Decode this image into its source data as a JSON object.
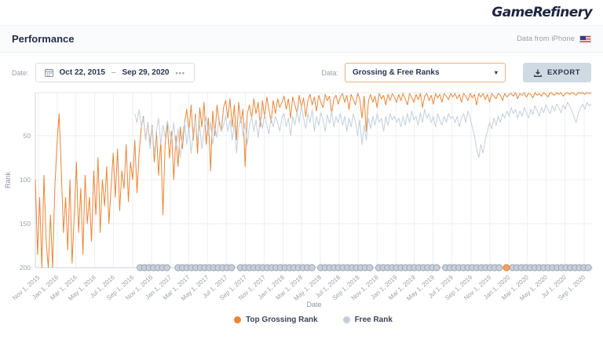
{
  "topbar": {
    "logo": "GameRefinery"
  },
  "header": {
    "title": "Performance",
    "data_source": "Data from iPhone",
    "flag_icon": "us-flag-icon"
  },
  "toolbar": {
    "date_label": "Date:",
    "date_range": {
      "start": "Oct 22, 2015",
      "separator": "–",
      "end": "Sep 29, 2020",
      "more": "•••"
    },
    "data_label": "Data:",
    "data_select_value": "Grossing & Free Ranks",
    "export_label": "EXPORT"
  },
  "legend": [
    {
      "label": "Top Grossing Rank",
      "color": "#ef8432"
    },
    {
      "label": "Free Rank",
      "color": "#c3cfdd"
    }
  ],
  "colors": {
    "accent_orange": "#ef8432",
    "accent_bluegray": "#c3cfdd",
    "navy_text": "#252e48",
    "muted_text": "#9aa0ae",
    "grid": "#edeff2",
    "axis": "#cfd4db",
    "marker_fill": "#c9d0da",
    "marker_stroke": "#9aa4b4",
    "marker_highlight_fill": "#f2a25c",
    "marker_highlight_stroke": "#e07f2e"
  },
  "chart_data": {
    "type": "line",
    "title": "",
    "xlabel": "Date",
    "ylabel": "Rank",
    "y_ticks": [
      50,
      100,
      150,
      200
    ],
    "y_range": [
      1,
      200
    ],
    "grid": true,
    "legend_position": "bottom",
    "start_date": "Oct 22, 2015",
    "end_date": "Sep 29, 2020",
    "interval_days": 7,
    "x_tick_labels": [
      "Nov 1, 2015",
      "Jan 1, 2016",
      "Mar 1, 2016",
      "May 1, 2016",
      "Jul 1, 2016",
      "Sep 1, 2016",
      "Nov 1, 2016",
      "Jan 1, 2017",
      "Mar 1, 2017",
      "May 1, 2017",
      "Jul 1, 2017",
      "Sep 1, 2017",
      "Nov 1, 2017",
      "Jan 1, 2018",
      "Mar 1, 2018",
      "May 1, 2018",
      "Jul 1, 2018",
      "Sep 1, 2018",
      "Nov 1, 2018",
      "Jan 1, 2019",
      "Mar 1, 2019",
      "May 1, 2019",
      "Jul 1, 2019",
      "Sep 1, 2019",
      "Nov 1, 2019",
      "Jan 1, 2020",
      "Mar 1, 2020",
      "May 1, 2020",
      "Jul 1, 2020",
      "Sep 1, 2020"
    ],
    "series": [
      {
        "name": "Top Grossing Rank",
        "color": "#ef8432",
        "start_index": 0,
        "values": [
          100,
          185,
          120,
          200,
          95,
          170,
          200,
          140,
          200,
          110,
          60,
          25,
          90,
          160,
          120,
          180,
          100,
          195,
          140,
          80,
          160,
          110,
          185,
          95,
          150,
          120,
          170,
          90,
          140,
          75,
          160,
          100,
          130,
          85,
          150,
          110,
          70,
          120,
          65,
          135,
          90,
          110,
          60,
          125,
          80,
          100,
          55,
          115,
          70,
          40,
          28,
          55,
          35,
          60,
          38,
          80,
          45,
          95,
          55,
          140,
          60,
          35,
          75,
          45,
          100,
          50,
          85,
          40,
          65,
          35,
          20,
          45,
          15,
          55,
          25,
          70,
          18,
          40,
          12,
          60,
          30,
          90,
          22,
          50,
          15,
          35,
          45,
          18,
          10,
          30,
          8,
          40,
          15,
          55,
          12,
          35,
          20,
          85,
          25,
          15,
          30,
          8,
          25,
          12,
          40,
          10,
          30,
          6,
          20,
          35,
          10,
          25,
          8,
          18,
          12,
          5,
          20,
          8,
          30,
          6,
          15,
          25,
          4,
          18,
          7,
          28,
          10,
          3,
          15,
          6,
          22,
          4,
          12,
          18,
          3,
          10,
          5,
          25,
          8,
          4,
          14,
          6,
          2,
          12,
          4,
          20,
          3,
          9,
          15,
          2,
          8,
          30,
          5,
          45,
          10,
          3,
          12,
          5,
          18,
          2,
          8,
          4,
          15,
          3,
          10,
          2,
          6,
          12,
          3,
          10,
          2,
          8,
          15,
          2,
          6,
          12,
          3,
          9,
          2,
          18,
          5,
          2,
          10,
          4,
          14,
          2,
          7,
          3,
          12,
          2,
          5,
          9,
          2,
          6,
          2,
          8,
          3,
          12,
          2,
          5,
          10,
          2,
          7,
          3,
          15,
          2,
          6,
          2,
          9,
          3,
          12,
          2,
          5,
          8,
          2,
          4,
          10,
          2,
          6,
          3,
          2,
          5,
          1,
          8,
          2,
          4,
          1,
          6,
          2,
          3,
          7,
          1,
          4,
          2,
          5,
          1,
          3,
          6,
          1,
          2,
          4,
          1,
          3,
          1,
          5,
          2,
          1,
          3,
          1,
          2,
          4,
          1,
          2,
          1,
          3,
          1,
          2,
          1
        ]
      },
      {
        "name": "Free Rank",
        "color": "#c3cfdd",
        "start_index": 46,
        "values": [
          25,
          35,
          20,
          40,
          30,
          55,
          35,
          65,
          40,
          70,
          45,
          30,
          60,
          38,
          52,
          33,
          45,
          55,
          35,
          65,
          42,
          75,
          50,
          35,
          60,
          40,
          70,
          45,
          30,
          55,
          38,
          65,
          42,
          28,
          50,
          35,
          60,
          40,
          52,
          30,
          45,
          38,
          28,
          45,
          32,
          55,
          35,
          70,
          40,
          30,
          50,
          35,
          60,
          38,
          28,
          45,
          32,
          52,
          30,
          42,
          25,
          38,
          48,
          30,
          40,
          28,
          35,
          45,
          30,
          25,
          40,
          30,
          50,
          28,
          38,
          22,
          35,
          15,
          30,
          42,
          25,
          35,
          20,
          45,
          28,
          38,
          24,
          32,
          45,
          26,
          36,
          22,
          40,
          28,
          35,
          25,
          38,
          28,
          45,
          30,
          40,
          25,
          35,
          50,
          32,
          60,
          38,
          55,
          30,
          42,
          28,
          38,
          25,
          35,
          30,
          45,
          28,
          38,
          25,
          32,
          28,
          35,
          30,
          40,
          28,
          38,
          25,
          35,
          22,
          32,
          28,
          38,
          24,
          35,
          20,
          30,
          25,
          35,
          28,
          40,
          25,
          32,
          38,
          28,
          35,
          25,
          30,
          28,
          35,
          28,
          40,
          30,
          25,
          35,
          22,
          30,
          40,
          50,
          65,
          75,
          60,
          70,
          55,
          45,
          35,
          42,
          30,
          38,
          28,
          35,
          25,
          30,
          22,
          28,
          18,
          25,
          20,
          30,
          22,
          28,
          18,
          24,
          30,
          20,
          26,
          16,
          22,
          28,
          18,
          24,
          15,
          20,
          25,
          16,
          22,
          14,
          18,
          24,
          15,
          20,
          12,
          16,
          22,
          28,
          35,
          25,
          18,
          14,
          20,
          12,
          16,
          14
        ]
      }
    ],
    "event_markers": {
      "description": "version update markers along bottom axis",
      "positions": [
        0.188,
        0.196,
        0.204,
        0.212,
        0.22,
        0.228,
        0.236,
        0.256,
        0.264,
        0.272,
        0.28,
        0.288,
        0.296,
        0.304,
        0.312,
        0.32,
        0.328,
        0.336,
        0.344,
        0.352,
        0.368,
        0.376,
        0.384,
        0.392,
        0.4,
        0.408,
        0.416,
        0.424,
        0.432,
        0.44,
        0.448,
        0.456,
        0.464,
        0.472,
        0.48,
        0.488,
        0.496,
        0.512,
        0.52,
        0.528,
        0.536,
        0.544,
        0.552,
        0.56,
        0.568,
        0.576,
        0.584,
        0.592,
        0.6,
        0.616,
        0.624,
        0.632,
        0.64,
        0.648,
        0.656,
        0.664,
        0.672,
        0.68,
        0.688,
        0.696,
        0.704,
        0.712,
        0.72,
        0.736,
        0.744,
        0.752,
        0.76,
        0.768,
        0.776,
        0.784,
        0.792,
        0.8,
        0.808,
        0.816,
        0.824,
        0.832,
        0.856,
        0.864,
        0.872,
        0.88,
        0.888,
        0.896,
        0.904,
        0.912,
        0.92,
        0.928,
        0.936,
        0.944,
        0.952,
        0.96,
        0.968,
        0.976,
        0.984,
        0.992
      ],
      "highlight_position": 0.845
    }
  }
}
